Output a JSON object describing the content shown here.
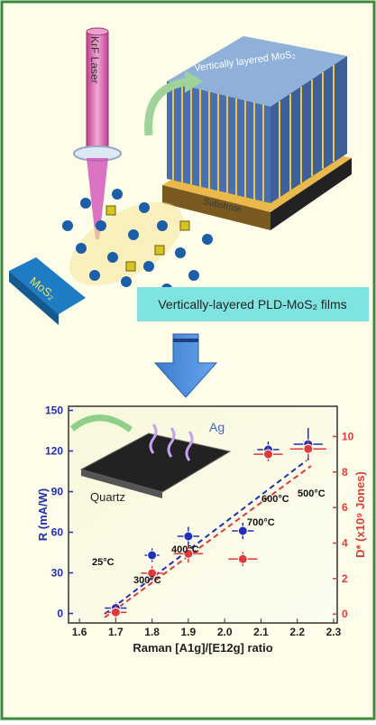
{
  "illustration": {
    "laser_label": "KrF Laser",
    "target_label": "MoS₂",
    "film_label": "Vertically layered MoS₂",
    "substrate_label": "Substrate",
    "caption": "Vertically-layered PLD-MoS₂ films",
    "inset_labels": [
      "Ag",
      "Quartz"
    ]
  },
  "chart_data": {
    "type": "scatter",
    "x_label": "Raman [A1g]/[E12g] ratio",
    "y_label": "R (mA/W)",
    "y2_label": "D* (x10⁹ Jones)",
    "xlim": [
      1.57,
      2.31
    ],
    "xticks": [
      1.6,
      1.7,
      1.8,
      1.9,
      {
        "value": 2,
        "label": "2.0"
      },
      2.1,
      2.2,
      2.3
    ],
    "ylim": [
      -7,
      153
    ],
    "yticks": [
      0,
      30,
      60,
      90,
      120,
      150
    ],
    "y2lim": [
      -0.5,
      11.7
    ],
    "y2ticks": [
      0,
      2,
      4,
      6,
      8,
      10
    ],
    "series": [
      {
        "color": "#1f2fb8",
        "x": [
          1.7,
          1.8,
          1.9,
          2.05,
          2.12,
          2.23
        ],
        "values": [
          4,
          43,
          57,
          61,
          121,
          125
        ],
        "errors": [
          4,
          5,
          7,
          6,
          6,
          12
        ],
        "x_errors": [
          0.03,
          0.02,
          0.03,
          0.03,
          0.03,
          0.04
        ]
      },
      {
        "color": "#e03a3a",
        "axis": "y2",
        "x": [
          1.7,
          1.8,
          1.9,
          2.05,
          2.12,
          2.23
        ],
        "values": [
          0.1,
          2.3,
          3.4,
          3.1,
          9,
          9.3
        ],
        "errors": [
          0.4,
          0.4,
          0.5,
          0.4,
          0.4,
          0.5
        ],
        "x_errors": [
          0.03,
          0.03,
          0.04,
          0.04,
          0.04,
          0.05
        ]
      }
    ],
    "annotations": [
      "25°C",
      "300°C",
      "400°C",
      "700°C",
      "600°C",
      "500°C"
    ]
  }
}
